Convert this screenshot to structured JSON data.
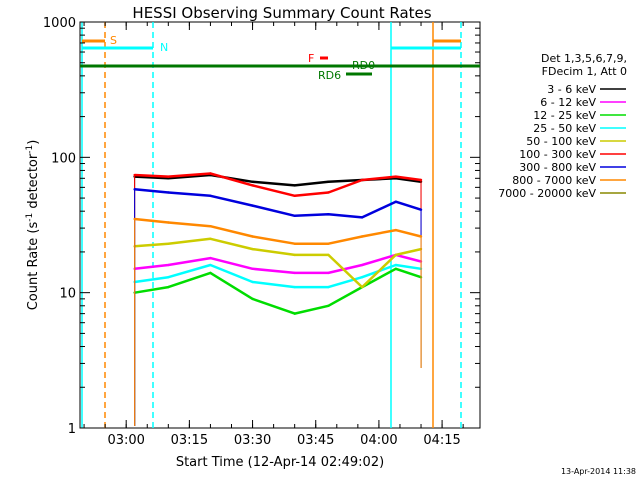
{
  "chart_data": {
    "type": "line",
    "title": "HESSI Observing Summary Count Rates",
    "xlabel": "Start Time (12-Apr-14 02:49:02)",
    "ylabel_main": "Count Rate (s",
    "ylabel_sup1": "-1",
    "ylabel_mid": " detector",
    "ylabel_sup2": "-1",
    "ylabel_end": ")",
    "y_scale": "log",
    "ylim": [
      1,
      1000
    ],
    "xlim": [
      "02:49:02",
      "04:24:00"
    ],
    "x_ticks": [
      "03:00",
      "03:15",
      "03:30",
      "03:45",
      "04:00",
      "04:15"
    ],
    "y_ticks": [
      "1",
      "10",
      "100",
      "1000"
    ],
    "legend_position": "right",
    "legend_header": [
      "Det 1,3,5,6,7,9,",
      "FDecim 1, Att 0"
    ],
    "series": [
      {
        "name": "3 - 6 keV",
        "color": "#000000",
        "x": [
          "03:02",
          "03:10",
          "03:20",
          "03:30",
          "03:40",
          "03:48",
          "03:56",
          "04:04",
          "04:10"
        ],
        "values": [
          72,
          70,
          74,
          66,
          62,
          66,
          68,
          70,
          66
        ]
      },
      {
        "name": "6 - 12 keV",
        "color": "#ff00ff",
        "x": [
          "03:02",
          "03:10",
          "03:20",
          "03:30",
          "03:40",
          "03:48",
          "03:56",
          "04:04",
          "04:10"
        ],
        "values": [
          15,
          16,
          18,
          15,
          14,
          14,
          16,
          19,
          17
        ]
      },
      {
        "name": "12 - 25 keV",
        "color": "#00dd00",
        "x": [
          "03:02",
          "03:10",
          "03:20",
          "03:30",
          "03:40",
          "03:48",
          "03:56",
          "04:04",
          "04:10"
        ],
        "values": [
          10,
          11,
          14,
          9,
          7,
          8,
          11,
          15,
          13
        ]
      },
      {
        "name": "25 - 50 keV",
        "color": "#00ffff",
        "x": [
          "03:02",
          "03:10",
          "03:20",
          "03:30",
          "03:40",
          "03:48",
          "03:56",
          "04:04",
          "04:10"
        ],
        "values": [
          12,
          13,
          16,
          12,
          11,
          11,
          13,
          16,
          15
        ]
      },
      {
        "name": "50 - 100 keV",
        "color": "#cccc00",
        "x": [
          "03:02",
          "03:10",
          "03:20",
          "03:30",
          "03:40",
          "03:48",
          "03:56",
          "04:04",
          "04:10"
        ],
        "values": [
          22,
          23,
          25,
          21,
          19,
          19,
          11,
          19,
          21
        ]
      },
      {
        "name": "100 - 300 keV",
        "color": "#ff0000",
        "x": [
          "03:02",
          "03:10",
          "03:20",
          "03:30",
          "03:40",
          "03:48",
          "03:56",
          "04:04",
          "04:10"
        ],
        "values": [
          74,
          72,
          76,
          62,
          52,
          55,
          68,
          72,
          68
        ]
      },
      {
        "name": "300 - 800 keV",
        "color": "#0000dd",
        "x": [
          "03:02",
          "03:10",
          "03:20",
          "03:30",
          "03:40",
          "03:48",
          "03:56",
          "04:04",
          "04:10"
        ],
        "values": [
          58,
          55,
          52,
          44,
          37,
          38,
          36,
          47,
          41
        ]
      },
      {
        "name": "800 - 7000 keV",
        "color": "#ff8800",
        "x": [
          "03:02",
          "03:10",
          "03:20",
          "03:30",
          "03:40",
          "03:48",
          "03:56",
          "04:04",
          "04:10"
        ],
        "values": [
          35,
          33,
          31,
          26,
          23,
          23,
          26,
          29,
          26
        ]
      },
      {
        "name": "7000 - 20000 keV",
        "color": "#888800",
        "x": [],
        "values": []
      }
    ],
    "annotations": [
      {
        "label": "S",
        "color": "#ff8800"
      },
      {
        "label": "N",
        "color": "#00ffff"
      },
      {
        "label": "F",
        "color": "#ff0000"
      },
      {
        "label": "RD0",
        "color": "#007700"
      },
      {
        "label": "RD6",
        "color": "#007700"
      }
    ],
    "footer_date": "13-Apr-2014 11:38"
  }
}
